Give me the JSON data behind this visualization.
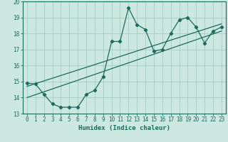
{
  "xlabel": "Humidex (Indice chaleur)",
  "bg_color": "#cce8e0",
  "line_color": "#1a6b60",
  "grid_color": "#99ccbb",
  "xlim": [
    -0.5,
    23.5
  ],
  "ylim": [
    13,
    20
  ],
  "yticks": [
    13,
    14,
    15,
    16,
    17,
    18,
    19,
    20
  ],
  "xticks": [
    0,
    1,
    2,
    3,
    4,
    5,
    6,
    7,
    8,
    9,
    10,
    11,
    12,
    13,
    14,
    15,
    16,
    17,
    18,
    19,
    20,
    21,
    22,
    23
  ],
  "line1_x": [
    0,
    1,
    2,
    3,
    4,
    5,
    6,
    7,
    8,
    9,
    10,
    11,
    12,
    13,
    14,
    15,
    16,
    17,
    18,
    19,
    20,
    21,
    22,
    23
  ],
  "line1_y": [
    14.9,
    14.85,
    14.2,
    13.6,
    13.4,
    13.4,
    13.4,
    14.2,
    14.45,
    15.3,
    17.5,
    17.5,
    19.6,
    18.55,
    18.25,
    16.9,
    17.0,
    18.0,
    18.85,
    19.0,
    18.4,
    17.4,
    18.15,
    18.4
  ],
  "line2_x": [
    0,
    23
  ],
  "line2_y": [
    14.7,
    18.6
  ],
  "line3_x": [
    0,
    23
  ],
  "line3_y": [
    14.0,
    18.15
  ]
}
